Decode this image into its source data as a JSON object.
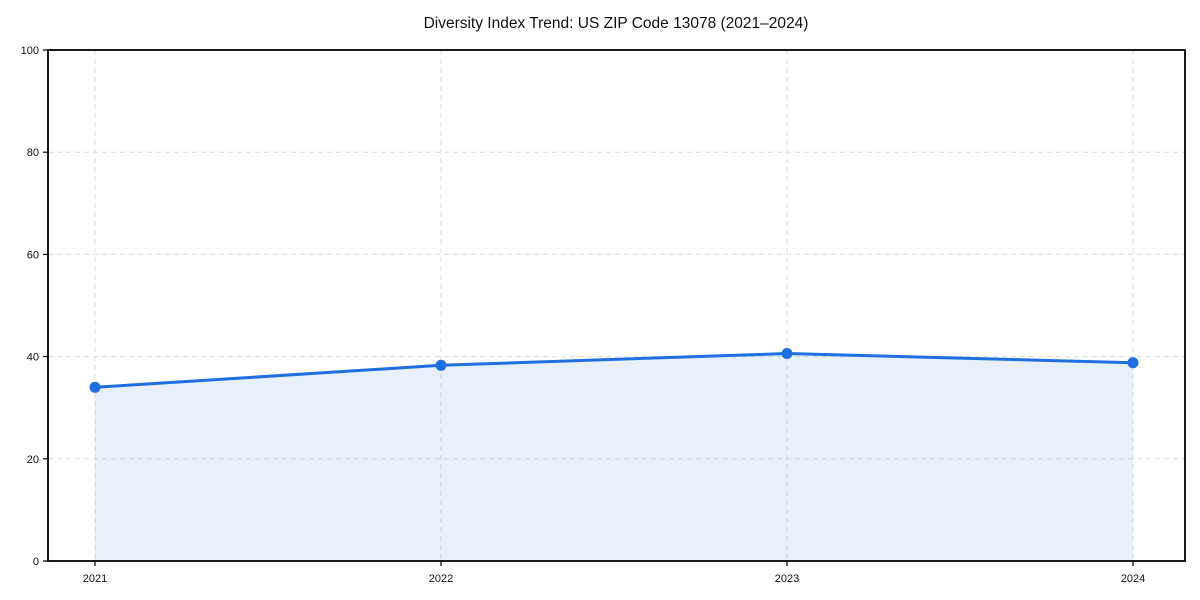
{
  "chart_data": {
    "type": "area",
    "title": "Diversity Index Trend: US ZIP Code 13078 (2021–2024)",
    "categories": [
      "2021",
      "2022",
      "2023",
      "2024"
    ],
    "values": [
      34.0,
      38.3,
      40.6,
      38.8
    ],
    "xlabel": "",
    "ylabel": "",
    "ylim": [
      0,
      100
    ],
    "yticks": [
      0,
      20,
      40,
      60,
      80,
      100
    ],
    "grid": {
      "visible": true,
      "style": "dashed",
      "axes": "both",
      "color": "#dcdcdc"
    },
    "legend": "none",
    "line_color": "#1f6fe0",
    "marker_color": "#1f6fe0",
    "fill_opacity": 0.1,
    "axis_color": "#000000",
    "background_color": "#ffffff"
  }
}
